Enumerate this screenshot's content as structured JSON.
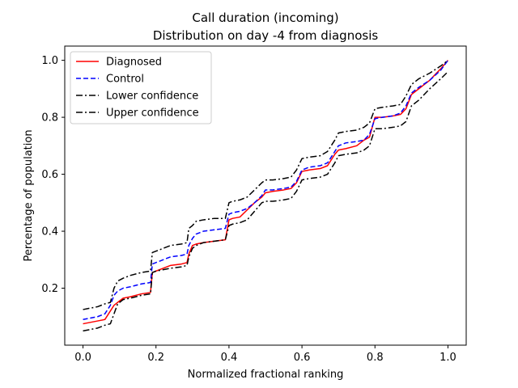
{
  "chart_data": {
    "type": "line",
    "title": "Call duration (incoming)",
    "subtitle": "Distribution on day -4 from diagnosis",
    "xlabel": "Normalized fractional ranking",
    "ylabel": "Percentage of population",
    "xlim": [
      -0.05,
      1.05
    ],
    "ylim": [
      0.0,
      1.05
    ],
    "xticks": [
      0.0,
      0.2,
      0.4,
      0.6,
      0.8,
      1.0
    ],
    "xtick_labels": [
      "0.0",
      "0.2",
      "0.4",
      "0.6",
      "0.8",
      "1.0"
    ],
    "yticks": [
      0.2,
      0.4,
      0.6,
      0.8,
      1.0
    ],
    "ytick_labels": [
      "0.2",
      "0.4",
      "0.6",
      "0.8",
      "1.0"
    ],
    "grid": false,
    "legend_position": "top-left",
    "series": [
      {
        "name": "Diagnosed",
        "color": "#ff0000",
        "style": "solid",
        "x": [
          0.0,
          0.02,
          0.04,
          0.06,
          0.075,
          0.085,
          0.095,
          0.11,
          0.13,
          0.16,
          0.185,
          0.19,
          0.2,
          0.22,
          0.24,
          0.27,
          0.285,
          0.29,
          0.3,
          0.31,
          0.33,
          0.36,
          0.39,
          0.4,
          0.41,
          0.43,
          0.45,
          0.47,
          0.49,
          0.5,
          0.52,
          0.55,
          0.57,
          0.585,
          0.6,
          0.62,
          0.65,
          0.67,
          0.69,
          0.7,
          0.72,
          0.75,
          0.77,
          0.785,
          0.8,
          0.82,
          0.85,
          0.87,
          0.885,
          0.9,
          0.92,
          0.95,
          0.98,
          1.0
        ],
        "y": [
          0.075,
          0.08,
          0.085,
          0.09,
          0.12,
          0.14,
          0.15,
          0.165,
          0.17,
          0.18,
          0.185,
          0.255,
          0.26,
          0.27,
          0.28,
          0.285,
          0.29,
          0.32,
          0.35,
          0.355,
          0.36,
          0.365,
          0.37,
          0.44,
          0.445,
          0.45,
          0.475,
          0.5,
          0.52,
          0.535,
          0.54,
          0.545,
          0.55,
          0.57,
          0.61,
          0.615,
          0.62,
          0.63,
          0.67,
          0.685,
          0.69,
          0.7,
          0.72,
          0.73,
          0.8,
          0.8,
          0.805,
          0.81,
          0.83,
          0.88,
          0.9,
          0.93,
          0.97,
          1.0
        ]
      },
      {
        "name": "Control",
        "color": "#0000ff",
        "style": "dashed",
        "x": [
          0.0,
          0.02,
          0.04,
          0.06,
          0.075,
          0.085,
          0.095,
          0.11,
          0.13,
          0.16,
          0.185,
          0.19,
          0.2,
          0.22,
          0.24,
          0.27,
          0.285,
          0.29,
          0.3,
          0.31,
          0.33,
          0.36,
          0.39,
          0.4,
          0.41,
          0.43,
          0.45,
          0.47,
          0.49,
          0.5,
          0.52,
          0.55,
          0.57,
          0.585,
          0.6,
          0.62,
          0.65,
          0.67,
          0.69,
          0.7,
          0.72,
          0.75,
          0.77,
          0.785,
          0.8,
          0.82,
          0.85,
          0.87,
          0.885,
          0.9,
          0.92,
          0.95,
          0.98,
          1.0
        ],
        "y": [
          0.09,
          0.095,
          0.1,
          0.11,
          0.14,
          0.175,
          0.19,
          0.2,
          0.205,
          0.215,
          0.22,
          0.285,
          0.29,
          0.3,
          0.31,
          0.315,
          0.32,
          0.35,
          0.375,
          0.39,
          0.4,
          0.405,
          0.41,
          0.46,
          0.465,
          0.47,
          0.48,
          0.5,
          0.525,
          0.545,
          0.545,
          0.55,
          0.555,
          0.575,
          0.615,
          0.625,
          0.63,
          0.64,
          0.68,
          0.7,
          0.71,
          0.715,
          0.72,
          0.74,
          0.795,
          0.8,
          0.805,
          0.815,
          0.84,
          0.885,
          0.905,
          0.93,
          0.965,
          1.0
        ]
      },
      {
        "name": "Lower confidence",
        "color": "#000000",
        "style": "dashdot",
        "x": [
          0.0,
          0.02,
          0.04,
          0.06,
          0.075,
          0.085,
          0.095,
          0.11,
          0.13,
          0.16,
          0.185,
          0.19,
          0.2,
          0.22,
          0.24,
          0.27,
          0.285,
          0.29,
          0.3,
          0.31,
          0.33,
          0.36,
          0.39,
          0.4,
          0.41,
          0.43,
          0.45,
          0.47,
          0.49,
          0.5,
          0.52,
          0.55,
          0.57,
          0.585,
          0.6,
          0.62,
          0.65,
          0.67,
          0.69,
          0.7,
          0.72,
          0.75,
          0.77,
          0.785,
          0.8,
          0.82,
          0.85,
          0.87,
          0.885,
          0.9,
          0.92,
          0.95,
          0.98,
          1.0
        ],
        "y": [
          0.05,
          0.055,
          0.06,
          0.07,
          0.075,
          0.11,
          0.145,
          0.16,
          0.165,
          0.175,
          0.18,
          0.255,
          0.26,
          0.265,
          0.27,
          0.275,
          0.28,
          0.31,
          0.34,
          0.35,
          0.36,
          0.365,
          0.37,
          0.42,
          0.425,
          0.43,
          0.44,
          0.47,
          0.5,
          0.505,
          0.505,
          0.51,
          0.515,
          0.54,
          0.58,
          0.585,
          0.59,
          0.6,
          0.64,
          0.665,
          0.67,
          0.675,
          0.685,
          0.7,
          0.76,
          0.76,
          0.765,
          0.77,
          0.785,
          0.84,
          0.86,
          0.9,
          0.935,
          0.96
        ]
      },
      {
        "name": "Upper confidence",
        "color": "#000000",
        "style": "dashdot",
        "x": [
          0.0,
          0.02,
          0.04,
          0.06,
          0.075,
          0.085,
          0.095,
          0.11,
          0.13,
          0.16,
          0.185,
          0.19,
          0.2,
          0.22,
          0.24,
          0.27,
          0.285,
          0.29,
          0.3,
          0.31,
          0.33,
          0.36,
          0.39,
          0.4,
          0.41,
          0.43,
          0.45,
          0.47,
          0.49,
          0.5,
          0.52,
          0.55,
          0.57,
          0.585,
          0.6,
          0.62,
          0.65,
          0.67,
          0.69,
          0.7,
          0.72,
          0.75,
          0.77,
          0.785,
          0.8,
          0.82,
          0.85,
          0.87,
          0.885,
          0.9,
          0.92,
          0.95,
          0.98,
          1.0
        ],
        "y": [
          0.125,
          0.13,
          0.135,
          0.145,
          0.15,
          0.2,
          0.225,
          0.235,
          0.245,
          0.255,
          0.26,
          0.325,
          0.33,
          0.34,
          0.35,
          0.355,
          0.36,
          0.41,
          0.42,
          0.435,
          0.44,
          0.445,
          0.445,
          0.5,
          0.505,
          0.51,
          0.52,
          0.545,
          0.57,
          0.58,
          0.58,
          0.585,
          0.59,
          0.615,
          0.655,
          0.66,
          0.665,
          0.68,
          0.72,
          0.745,
          0.75,
          0.755,
          0.765,
          0.78,
          0.83,
          0.835,
          0.84,
          0.845,
          0.875,
          0.915,
          0.935,
          0.955,
          0.98,
          1.0
        ]
      }
    ]
  }
}
